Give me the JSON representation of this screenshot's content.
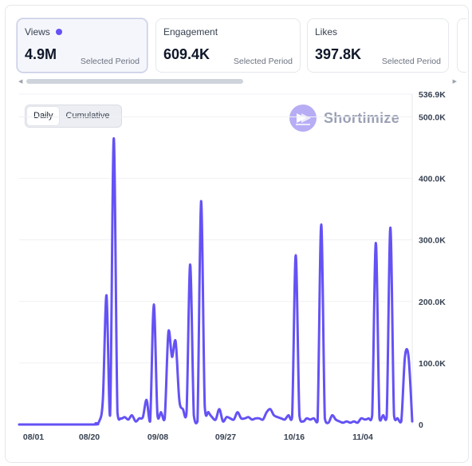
{
  "cards": [
    {
      "label": "Views",
      "value": "4.9M",
      "sub": "Selected Period",
      "selected": true
    },
    {
      "label": "Engagement",
      "value": "609.4K",
      "sub": "Selected Period",
      "selected": false
    },
    {
      "label": "Likes",
      "value": "397.8K",
      "sub": "Selected Period",
      "selected": false
    }
  ],
  "toggle": {
    "options": [
      "Daily",
      "Cumulative"
    ],
    "active": "Daily"
  },
  "brand": {
    "name": "Shortimize"
  },
  "colors": {
    "series": "#6452f5",
    "accent_dot": "#6452f5",
    "logo": "#b7adf5"
  },
  "chart_data": {
    "type": "line",
    "x_ticks": [
      "08/01",
      "08/20",
      "09/08",
      "09/27",
      "10/16",
      "11/04"
    ],
    "y_ticks": [
      "0",
      "100.0K",
      "200.0K",
      "300.0K",
      "400.0K",
      "500.0K",
      "536.9K"
    ],
    "y_tick_values": [
      0,
      100000,
      200000,
      300000,
      400000,
      500000,
      536900
    ],
    "ylim": [
      0,
      536900
    ],
    "grid": true,
    "series": [
      {
        "points": [
          [
            0,
            0
          ],
          [
            20,
            0
          ],
          [
            21,
            2000
          ],
          [
            22,
            5000
          ],
          [
            23,
            40000
          ],
          [
            24,
            210000
          ],
          [
            25,
            15000
          ],
          [
            26,
            465000
          ],
          [
            27,
            20000
          ],
          [
            28,
            10000
          ],
          [
            29,
            12000
          ],
          [
            30,
            8000
          ],
          [
            31,
            15000
          ],
          [
            32,
            5000
          ],
          [
            33,
            10000
          ],
          [
            34,
            12000
          ],
          [
            35,
            40000
          ],
          [
            36,
            5000
          ],
          [
            37,
            195000
          ],
          [
            38,
            15000
          ],
          [
            39,
            20000
          ],
          [
            40,
            10000
          ],
          [
            41,
            150000
          ],
          [
            42,
            110000
          ],
          [
            43,
            135000
          ],
          [
            44,
            40000
          ],
          [
            45,
            25000
          ],
          [
            46,
            20000
          ],
          [
            47,
            260000
          ],
          [
            48,
            15000
          ],
          [
            49,
            5000
          ],
          [
            50,
            363000
          ],
          [
            51,
            30000
          ],
          [
            52,
            20000
          ],
          [
            53,
            12000
          ],
          [
            54,
            8000
          ],
          [
            55,
            25000
          ],
          [
            56,
            5000
          ],
          [
            57,
            12000
          ],
          [
            58,
            10000
          ],
          [
            59,
            8000
          ],
          [
            60,
            20000
          ],
          [
            61,
            10000
          ],
          [
            62,
            10000
          ],
          [
            63,
            12000
          ],
          [
            64,
            8000
          ],
          [
            65,
            10000
          ],
          [
            66,
            10000
          ],
          [
            67,
            8000
          ],
          [
            68,
            20000
          ],
          [
            69,
            25000
          ],
          [
            70,
            15000
          ],
          [
            71,
            12000
          ],
          [
            72,
            10000
          ],
          [
            73,
            8000
          ],
          [
            74,
            15000
          ],
          [
            75,
            12000
          ],
          [
            76,
            275000
          ],
          [
            77,
            15000
          ],
          [
            78,
            5000
          ],
          [
            79,
            10000
          ],
          [
            80,
            8000
          ],
          [
            81,
            10000
          ],
          [
            82,
            5000
          ],
          [
            83,
            325000
          ],
          [
            84,
            10000
          ],
          [
            85,
            3000
          ],
          [
            86,
            15000
          ],
          [
            87,
            8000
          ],
          [
            88,
            5000
          ],
          [
            89,
            3000
          ],
          [
            90,
            5000
          ],
          [
            91,
            3000
          ],
          [
            92,
            5000
          ],
          [
            93,
            3000
          ],
          [
            94,
            10000
          ],
          [
            95,
            8000
          ],
          [
            96,
            10000
          ],
          [
            97,
            15000
          ],
          [
            98,
            295000
          ],
          [
            99,
            10000
          ],
          [
            100,
            15000
          ],
          [
            101,
            12000
          ],
          [
            102,
            320000
          ],
          [
            103,
            15000
          ],
          [
            104,
            10000
          ],
          [
            105,
            5000
          ],
          [
            106,
            110000
          ],
          [
            107,
            110000
          ],
          [
            108,
            5000
          ]
        ]
      }
    ]
  }
}
